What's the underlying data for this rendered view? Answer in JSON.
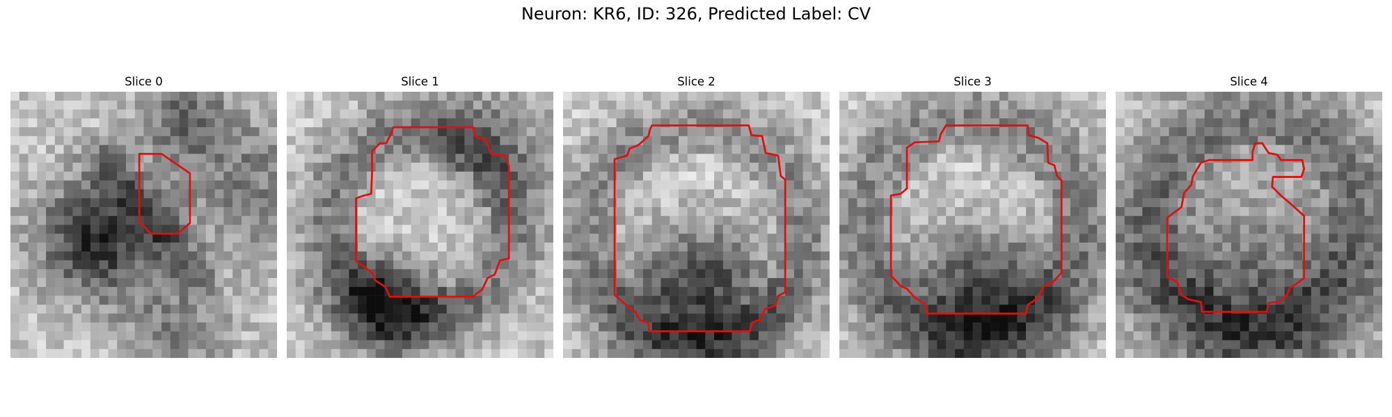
{
  "figure": {
    "title": "Neuron: KR6, ID: 326, Predicted Label: CV"
  },
  "panels": [
    {
      "title": "Slice 0",
      "seed": 11,
      "dark": [
        [
          0.33,
          0.55,
          0.16,
          1.1
        ],
        [
          0.62,
          0.92,
          0.14,
          0.5
        ],
        [
          0.9,
          0.35,
          0.2,
          0.5
        ],
        [
          0.65,
          0.1,
          0.12,
          0.6
        ]
      ],
      "ridge": [
        0.35,
        0.25,
        0.7,
        0.7,
        0.05,
        0.6
      ]
    },
    {
      "title": "Slice 1",
      "seed": 23,
      "dark": [
        [
          0.38,
          0.78,
          0.14,
          1.0
        ],
        [
          0.75,
          0.2,
          0.18,
          0.4
        ]
      ],
      "ring": [
        0.5,
        0.5,
        0.35,
        0.09,
        0.55
      ]
    },
    {
      "title": "Slice 2",
      "seed": 37,
      "dark": [
        [
          0.5,
          0.76,
          0.2,
          1.1
        ]
      ],
      "ring": [
        0.5,
        0.55,
        0.42,
        0.08,
        0.45
      ]
    },
    {
      "title": "Slice 3",
      "seed": 49,
      "dark": [
        [
          0.53,
          0.76,
          0.2,
          1.05
        ]
      ],
      "ring": [
        0.5,
        0.52,
        0.42,
        0.1,
        0.5
      ]
    },
    {
      "title": "Slice 4",
      "seed": 61,
      "dark": [
        [
          0.5,
          0.72,
          0.28,
          0.7
        ]
      ],
      "ring": [
        0.52,
        0.5,
        0.4,
        0.12,
        0.55
      ]
    }
  ]
}
